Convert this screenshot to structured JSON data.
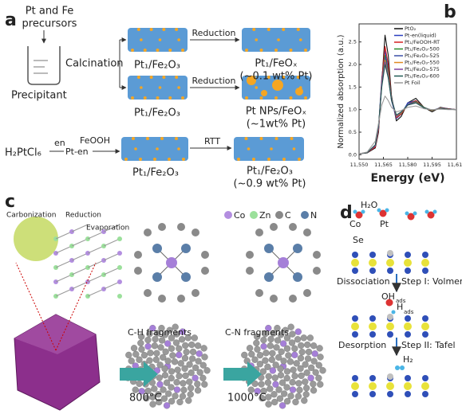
{
  "panel_a": {
    "label": "a",
    "precursors_line1": "Pt and Fe",
    "precursors_line2": "precursors",
    "precipitant": "Precipitant",
    "calcination": "Calcination",
    "reduction_1": "Reduction",
    "reduction_2": "Reduction",
    "support_1": "Pt₁/Fe₂O₃",
    "support_2": "Pt₁/Fe₂O₃",
    "product_1": "Pt₁/FeOₓ",
    "loading_1": "(~0.1 wt% Pt)",
    "product_2": "Pt NPs/FeOₓ",
    "loading_2": "(~1wt% Pt)",
    "pt_source": "H₂PtCl₆",
    "ligand": "en",
    "complex": "Pt-en",
    "support_source": "FeOOH",
    "support_3": "Pt₁/Fe₂O₃",
    "rtt": "RTT",
    "product_3": "Pt₁/Fe₂O₃",
    "loading_3": "(~0.9 wt% Pt)"
  },
  "panel_c": {
    "label": "c",
    "carbonization": "Carbonization",
    "reduction": "Reduction",
    "evaporation": "Evaporation",
    "legend": [
      "Co",
      "Zn",
      "C",
      "N"
    ],
    "step_1": "C-H fragments",
    "temp_1": "800°C",
    "step_2": "C-N fragments",
    "temp_2": "1000°C"
  },
  "panel_d": {
    "label": "d",
    "water": "H₂O",
    "co": "Co",
    "pt": "Pt",
    "se": "Se",
    "dissociation": "Dissociation",
    "step_1": "Step I: Volmer",
    "oh": "OH",
    "oh_sub": "ads",
    "h": "H",
    "h_sub": "ads",
    "desorption": "Desorption",
    "step_2": "Step II: Tafel",
    "h2": "H₂"
  },
  "chart_data": {
    "type": "line",
    "panel_label": "b",
    "x_label": "Energy (eV)",
    "y_label": "Normalized absorption (a.u.)",
    "x": [
      11550,
      11555,
      11560,
      11562,
      11564,
      11566,
      11568,
      11570,
      11573,
      11576,
      11580,
      11585,
      11590,
      11595,
      11600,
      11605,
      11610
    ],
    "xlim": [
      11550,
      11610
    ],
    "xticks": [
      {
        "value": 11550,
        "label": "11,550"
      },
      {
        "value": 11565,
        "label": "11,565"
      },
      {
        "value": 11580,
        "label": "11,580"
      },
      {
        "value": 11595,
        "label": "11,595"
      },
      {
        "value": 11610,
        "label": "11,610"
      }
    ],
    "ylim": [
      -0.1,
      2.9
    ],
    "yticks": [
      {
        "value": 0,
        "label": "0.0"
      },
      {
        "value": 0.5,
        "label": "0.5"
      },
      {
        "value": 1,
        "label": "1.0"
      },
      {
        "value": 1.5,
        "label": "1.5"
      },
      {
        "value": 2,
        "label": "2.0"
      },
      {
        "value": 2.5,
        "label": "2.5"
      }
    ],
    "series": [
      {
        "name": "PtO₂",
        "color": "#111111",
        "values": [
          0.02,
          0.04,
          0.15,
          0.5,
          1.6,
          2.65,
          2.2,
          1.3,
          0.75,
          0.85,
          1.15,
          1.25,
          1.05,
          0.95,
          1.05,
          1.02,
          1.0
        ]
      },
      {
        "name": "Pt-en(liquid)",
        "color": "#2a3fbf",
        "values": [
          0.02,
          0.05,
          0.18,
          0.6,
          1.7,
          2.3,
          1.9,
          1.2,
          0.8,
          0.9,
          1.15,
          1.2,
          1.05,
          0.98,
          1.04,
          1.02,
          1.0
        ]
      },
      {
        "name": "Pt₁/FeOOH-RT",
        "color": "#d62020",
        "values": [
          0.02,
          0.05,
          0.17,
          0.55,
          1.65,
          2.4,
          2.0,
          1.25,
          0.82,
          0.9,
          1.12,
          1.2,
          1.05,
          0.98,
          1.03,
          1.02,
          1.0
        ]
      },
      {
        "name": "Pt₁/Fe₂O₃-500",
        "color": "#2a8a2a",
        "values": [
          0.02,
          0.05,
          0.2,
          0.6,
          1.6,
          2.2,
          1.85,
          1.25,
          0.85,
          0.92,
          1.12,
          1.18,
          1.05,
          0.98,
          1.03,
          1.01,
          1.0
        ]
      },
      {
        "name": "Pt₁/Fe₂O₃-525",
        "color": "#3a4fa8",
        "values": [
          0.02,
          0.05,
          0.2,
          0.62,
          1.6,
          2.15,
          1.8,
          1.25,
          0.85,
          0.93,
          1.12,
          1.17,
          1.04,
          0.98,
          1.03,
          1.01,
          1.0
        ]
      },
      {
        "name": "Pt₁/Fe₂O₃-550",
        "color": "#e08a20",
        "values": [
          0.02,
          0.05,
          0.2,
          0.62,
          1.55,
          2.1,
          1.75,
          1.22,
          0.86,
          0.93,
          1.1,
          1.16,
          1.04,
          0.98,
          1.03,
          1.01,
          1.0
        ]
      },
      {
        "name": "Pt₁/Fe₂O₃-575",
        "color": "#8040a0",
        "values": [
          0.02,
          0.05,
          0.2,
          0.6,
          1.55,
          2.05,
          1.72,
          1.2,
          0.87,
          0.94,
          1.1,
          1.15,
          1.04,
          0.99,
          1.02,
          1.01,
          1.0
        ]
      },
      {
        "name": "Pt₁/Fe₂O₃-600",
        "color": "#1f5a55",
        "values": [
          0.02,
          0.05,
          0.22,
          0.65,
          1.5,
          2.0,
          1.7,
          1.2,
          0.88,
          0.95,
          1.1,
          1.15,
          1.04,
          0.99,
          1.02,
          1.01,
          1.0
        ]
      },
      {
        "name": "Pt Foil",
        "color": "#9a9a9a",
        "values": [
          0.02,
          0.06,
          0.3,
          0.7,
          1.1,
          1.3,
          1.2,
          1.05,
          0.95,
          0.98,
          1.05,
          1.08,
          1.02,
          1.0,
          1.01,
          1.0,
          1.0
        ]
      }
    ]
  }
}
